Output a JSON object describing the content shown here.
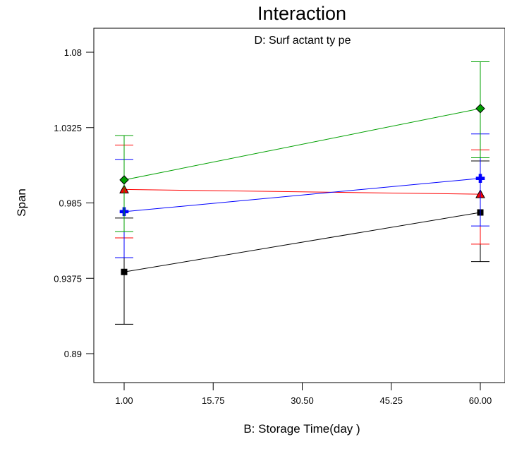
{
  "chart_data": {
    "type": "line",
    "title": "Interaction",
    "subtitle": "D: Surf actant ty pe",
    "xlabel": "B: Storage Time(day )",
    "ylabel": "Span",
    "x_ticks": [
      "1.00",
      "15.75",
      "30.50",
      "45.25",
      "60.00"
    ],
    "y_ticks": [
      "0.89",
      "0.9375",
      "0.985",
      "1.0325",
      "1.08"
    ],
    "xlim": [
      1,
      60
    ],
    "ylim": [
      0.89,
      1.08
    ],
    "grid": false,
    "legend": "none",
    "x": [
      1,
      60
    ],
    "series": [
      {
        "marker": "diamond",
        "color": "#00a000",
        "values": [
          0.9995,
          1.0445
        ],
        "err_low": [
          0.967,
          1.0135
        ],
        "err_high": [
          1.0275,
          1.074
        ]
      },
      {
        "marker": "triangle",
        "color": "#ff0000",
        "values": [
          0.9935,
          0.9905
        ],
        "err_low": [
          0.963,
          0.959
        ],
        "err_high": [
          1.0215,
          1.0185
        ]
      },
      {
        "marker": "plus",
        "color": "#0000ff",
        "values": [
          0.9795,
          1.0005
        ],
        "err_low": [
          0.9505,
          0.9705
        ],
        "err_high": [
          1.0125,
          1.0285
        ]
      },
      {
        "marker": "square",
        "color": "#000000",
        "values": [
          0.9415,
          0.979
        ],
        "err_low": [
          0.9085,
          0.948
        ],
        "err_high": [
          0.9755,
          1.0115
        ]
      }
    ]
  }
}
